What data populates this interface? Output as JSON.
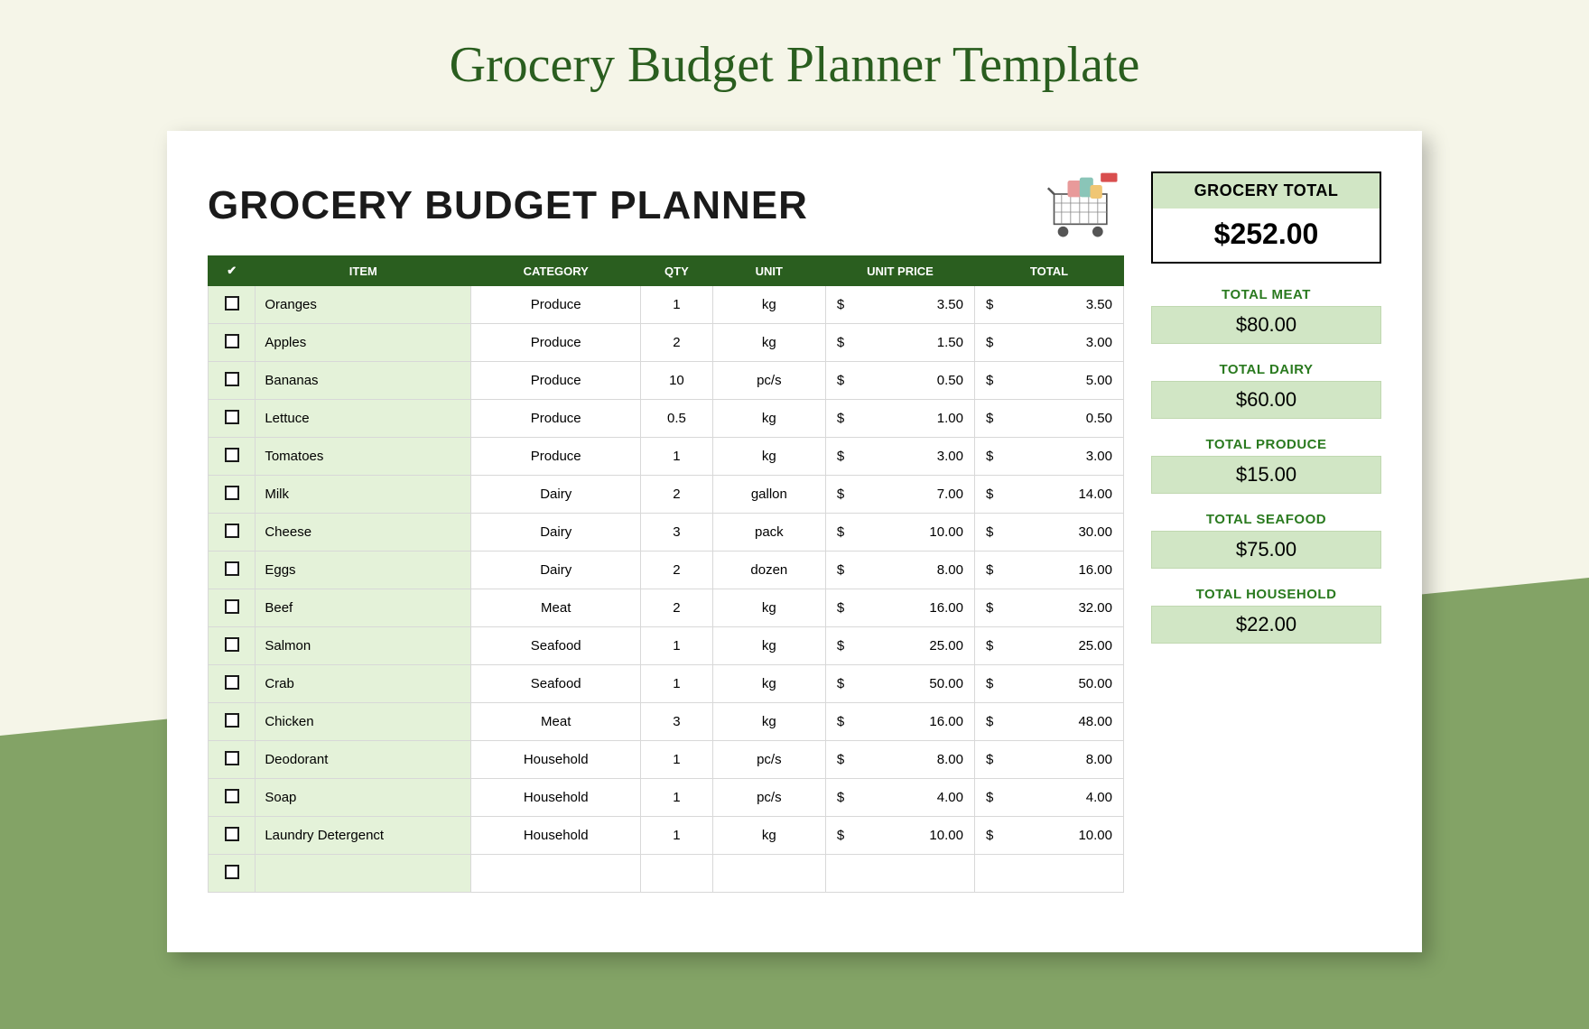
{
  "page": {
    "title": "Grocery Budget Planner Template",
    "background_color": "#f5f5e8",
    "accent_color": "#83a366",
    "title_color": "#2a5e1f"
  },
  "planner": {
    "title": "GROCERY BUDGET PLANNER",
    "header_bg": "#2a5e1f",
    "row_accent_bg": "#e4f2d9",
    "columns": {
      "check": "✔",
      "item": "ITEM",
      "category": "CATEGORY",
      "qty": "QTY",
      "unit": "UNIT",
      "unit_price": "UNIT PRICE",
      "total": "TOTAL"
    },
    "rows": [
      {
        "item": "Oranges",
        "category": "Produce",
        "qty": "1",
        "unit": "kg",
        "unit_price": "3.50",
        "total": "3.50"
      },
      {
        "item": "Apples",
        "category": "Produce",
        "qty": "2",
        "unit": "kg",
        "unit_price": "1.50",
        "total": "3.00"
      },
      {
        "item": "Bananas",
        "category": "Produce",
        "qty": "10",
        "unit": "pc/s",
        "unit_price": "0.50",
        "total": "5.00"
      },
      {
        "item": "Lettuce",
        "category": "Produce",
        "qty": "0.5",
        "unit": "kg",
        "unit_price": "1.00",
        "total": "0.50"
      },
      {
        "item": "Tomatoes",
        "category": "Produce",
        "qty": "1",
        "unit": "kg",
        "unit_price": "3.00",
        "total": "3.00"
      },
      {
        "item": "Milk",
        "category": "Dairy",
        "qty": "2",
        "unit": "gallon",
        "unit_price": "7.00",
        "total": "14.00"
      },
      {
        "item": "Cheese",
        "category": "Dairy",
        "qty": "3",
        "unit": "pack",
        "unit_price": "10.00",
        "total": "30.00"
      },
      {
        "item": "Eggs",
        "category": "Dairy",
        "qty": "2",
        "unit": "dozen",
        "unit_price": "8.00",
        "total": "16.00"
      },
      {
        "item": "Beef",
        "category": "Meat",
        "qty": "2",
        "unit": "kg",
        "unit_price": "16.00",
        "total": "32.00"
      },
      {
        "item": "Salmon",
        "category": "Seafood",
        "qty": "1",
        "unit": "kg",
        "unit_price": "25.00",
        "total": "25.00"
      },
      {
        "item": "Crab",
        "category": "Seafood",
        "qty": "1",
        "unit": "kg",
        "unit_price": "50.00",
        "total": "50.00"
      },
      {
        "item": "Chicken",
        "category": "Meat",
        "qty": "3",
        "unit": "kg",
        "unit_price": "16.00",
        "total": "48.00"
      },
      {
        "item": "Deodorant",
        "category": "Household",
        "qty": "1",
        "unit": "pc/s",
        "unit_price": "8.00",
        "total": "8.00"
      },
      {
        "item": "Soap",
        "category": "Household",
        "qty": "1",
        "unit": "pc/s",
        "unit_price": "4.00",
        "total": "4.00"
      },
      {
        "item": "Laundry Detergenct",
        "category": "Household",
        "qty": "1",
        "unit": "kg",
        "unit_price": "10.00",
        "total": "10.00"
      }
    ],
    "currency": "$"
  },
  "summary": {
    "grocery_total": {
      "label": "GROCERY TOTAL",
      "value": "$252.00"
    },
    "categories": [
      {
        "label": "TOTAL MEAT",
        "value": "$80.00"
      },
      {
        "label": "TOTAL DAIRY",
        "value": "$60.00"
      },
      {
        "label": "TOTAL PRODUCE",
        "value": "$15.00"
      },
      {
        "label": "TOTAL SEAFOOD",
        "value": "$75.00"
      },
      {
        "label": "TOTAL HOUSEHOLD",
        "value": "$22.00"
      }
    ],
    "box_bg": "#d1e6c5",
    "label_color": "#2a7a1f"
  }
}
